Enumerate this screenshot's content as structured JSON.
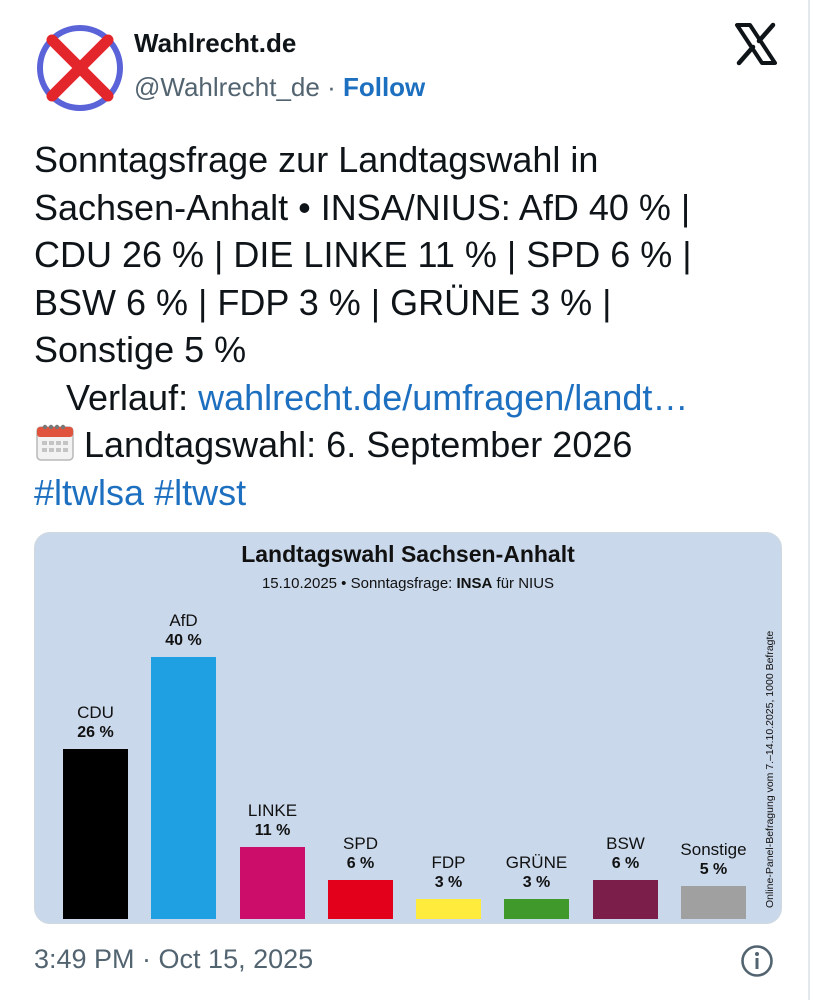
{
  "header": {
    "display_name": "Wahlrecht.de",
    "handle": "@Wahlrecht_de",
    "separator": " · ",
    "follow_label": "Follow",
    "avatar_icon": "red-x-circle-logo",
    "platform_icon": "x-logo-icon"
  },
  "tweet": {
    "line1": "Sonntagsfrage zur Landtagswahl in",
    "line2": "Sachsen-Anhalt • INSA/NIUS: AfD 40 % |",
    "line3": "CDU 26 % | DIE LINKE 11 % | SPD 6 % |",
    "line4": "BSW 6 % | FDP 3 % | GRÜNE 3 % |",
    "line5": "Sonstige 5 %",
    "verlauf_label": "Verlauf: ",
    "verlauf_link": "wahlrecht.de/umfragen/landt…",
    "election_text": "Landtagswahl: 6. September 2026",
    "hashtag1": "#ltwlsa",
    "hashtag2": "#ltwst"
  },
  "chart_data": {
    "type": "bar",
    "title": "Landtagswahl Sachsen-Anhalt",
    "subtitle_prefix": "15.10.2025 • Sonntagsfrage: ",
    "subtitle_institute": "INSA",
    "subtitle_suffix": " für NIUS",
    "side_note": "Online-Panel-Befragung vom 7.–14.10.2025, 1000 Befragte",
    "ylim": [
      0,
      45
    ],
    "categories": [
      "CDU",
      "AfD",
      "LINKE",
      "SPD",
      "FDP",
      "GRÜNE",
      "BSW",
      "Sonstige"
    ],
    "values": [
      26,
      40,
      11,
      6,
      3,
      3,
      6,
      5
    ],
    "labels": [
      "26 %",
      "40 %",
      "11 %",
      "6 %",
      "3 %",
      "3 %",
      "6 %",
      "5 %"
    ],
    "colors": [
      "#000000",
      "#1ea0e2",
      "#cc0e6a",
      "#e2001a",
      "#ffeb3b",
      "#3f9a2b",
      "#7b1e4a",
      "#a0a0a0"
    ]
  },
  "footer": {
    "timestamp": "3:49 PM · Oct 15, 2025",
    "info_icon": "info-icon"
  }
}
